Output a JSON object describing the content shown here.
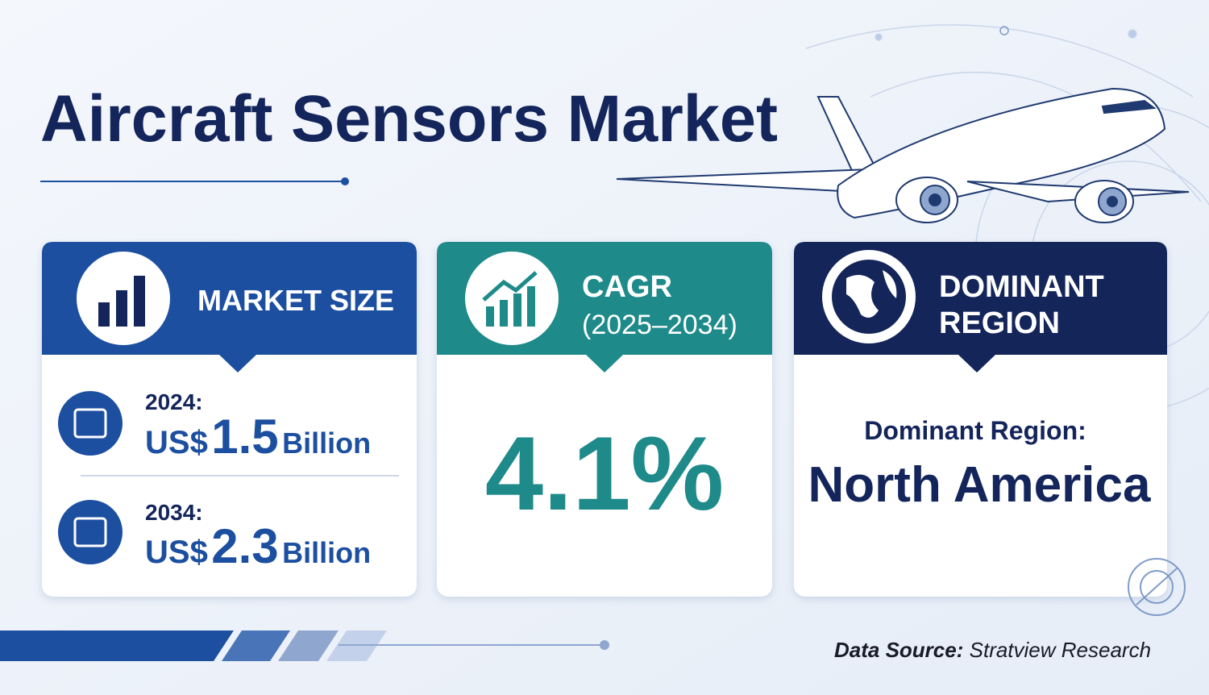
{
  "title": "Aircraft Sensors Market",
  "cards": [
    {
      "header": "MARKET SIZE",
      "items": [
        {
          "year": "2024:",
          "prefix": "US$",
          "value": "1.5",
          "unit": "Billion"
        },
        {
          "year": "2034:",
          "prefix": "US$",
          "value": "2.3",
          "unit": "Billion"
        }
      ]
    },
    {
      "header": "CAGR",
      "period": "(2025–2034)",
      "value": "4.1%"
    },
    {
      "header_lines": [
        "DOMINANT",
        "REGION"
      ],
      "label": "Dominant Region:",
      "value": "North America"
    }
  ],
  "source": {
    "label": "Data Source:",
    "name": "Stratview Research"
  }
}
